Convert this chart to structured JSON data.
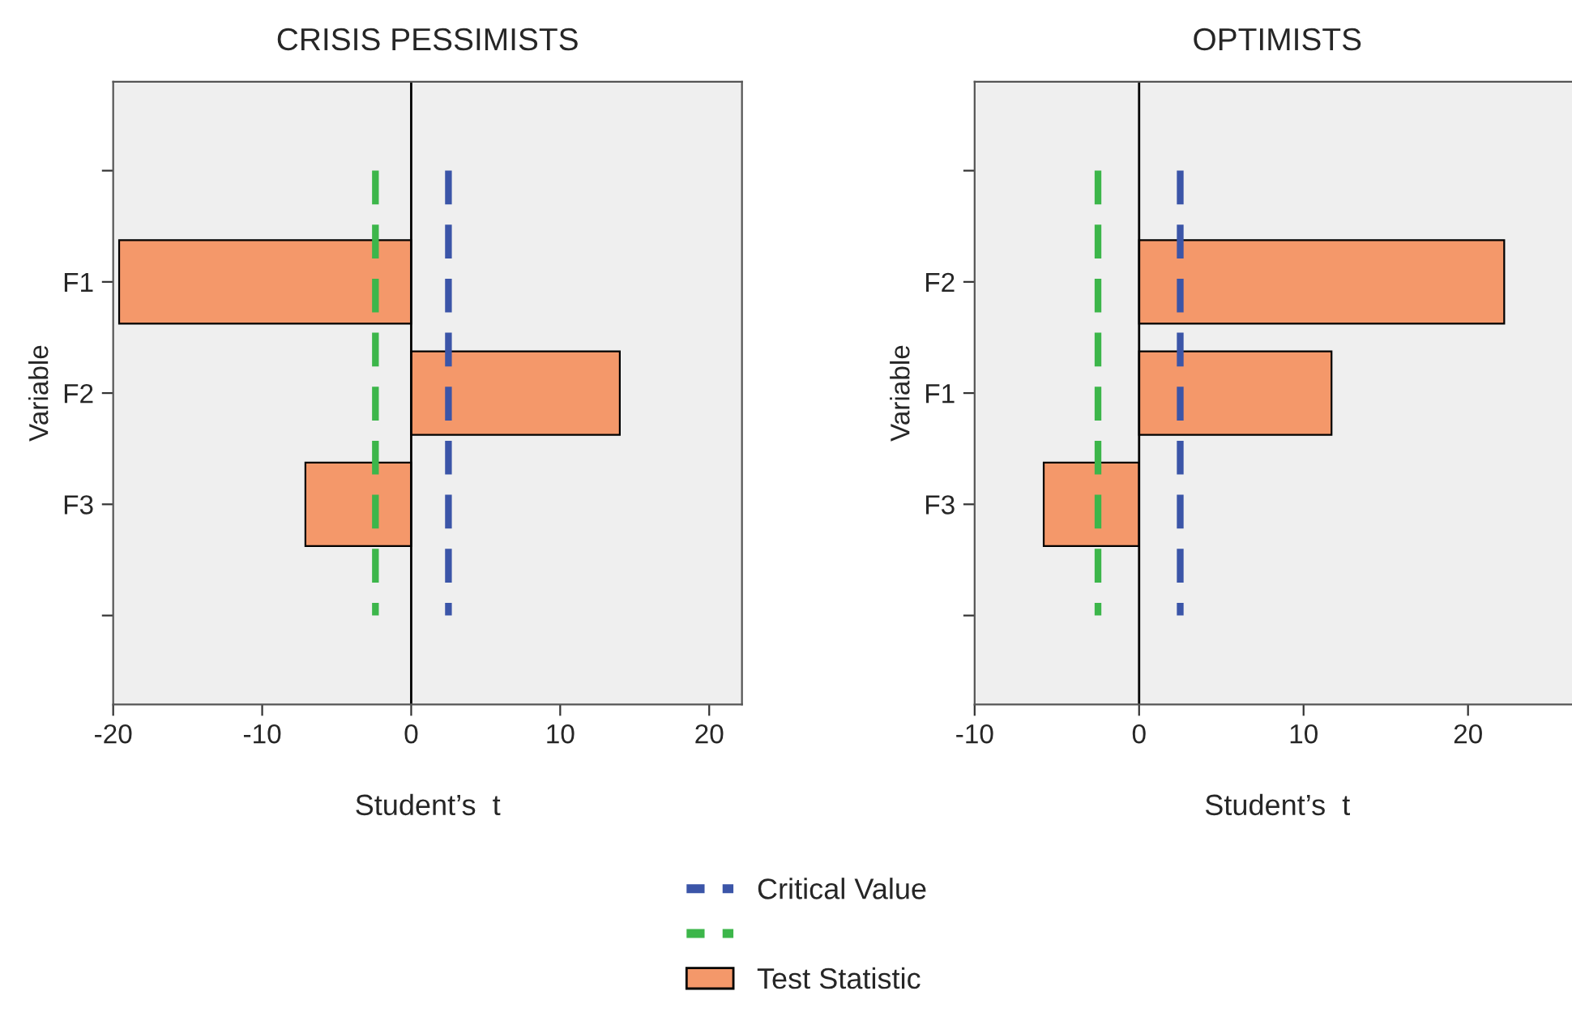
{
  "chart_data": [
    {
      "type": "bar",
      "title": "CRISIS PESSIMISTS",
      "orientation": "horizontal",
      "xlabel": "Student’s  t",
      "ylabel": "Variable",
      "categories": [
        null,
        "F1",
        "F2",
        "F3",
        null
      ],
      "series": [
        {
          "name": "Test Statistic",
          "color": "#f4986a",
          "values": [
            null,
            -19.6,
            14.0,
            -7.1,
            null
          ]
        }
      ],
      "xlim": [
        -20,
        22.2
      ],
      "xticks": [
        -20,
        -10,
        0,
        10,
        20
      ],
      "ref_lines": [
        {
          "axis": "x",
          "value": 0,
          "color": "#000000",
          "line_style": "solid"
        },
        {
          "axis": "x",
          "value": 2.5,
          "label": "Critical Value",
          "color": "#3b55a8",
          "line_style": "dashed"
        },
        {
          "axis": "x",
          "value": -2.4,
          "color": "#3cb64a",
          "line_style": "dashed"
        }
      ],
      "legend": "bottom",
      "grid": false
    },
    {
      "type": "bar",
      "title": "OPTIMISTS",
      "orientation": "horizontal",
      "xlabel": "Student’s  t",
      "ylabel": "Variable",
      "categories": [
        null,
        "F2",
        "F1",
        "F3",
        null
      ],
      "series": [
        {
          "color": "#f4986a",
          "values": [
            null,
            22.2,
            11.7,
            -5.8,
            null
          ]
        }
      ],
      "xlim": [
        -10,
        26.8
      ],
      "xticks": [
        -10,
        0,
        10,
        20
      ],
      "ref_lines": [
        {
          "axis": "x",
          "value": 0,
          "color": "#000000",
          "line_style": "solid"
        },
        {
          "axis": "x",
          "value": 2.5,
          "color": "#3b55a8",
          "line_style": "dashed"
        },
        {
          "axis": "x",
          "value": -2.5,
          "color": "#3cb64a",
          "line_style": "dashed"
        }
      ],
      "grid": false
    }
  ]
}
